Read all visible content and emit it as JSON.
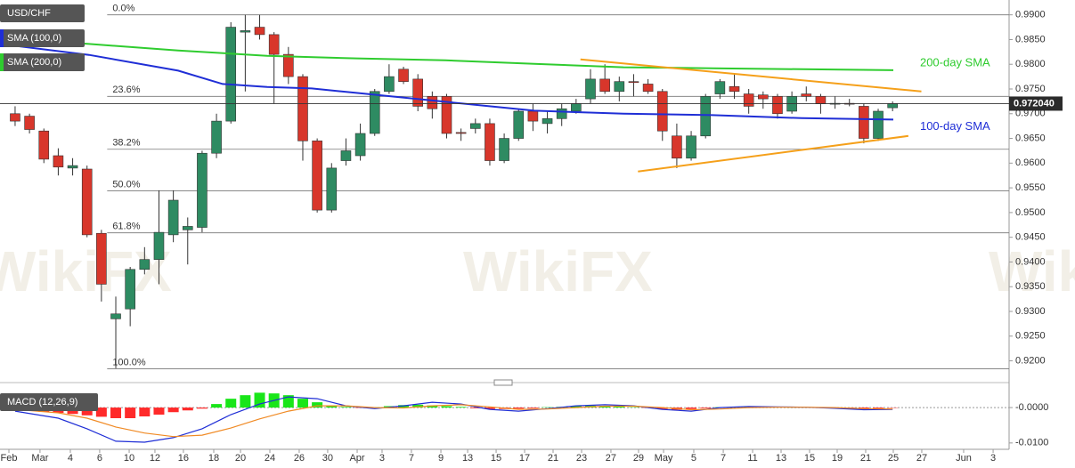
{
  "chart_data": [
    {
      "type": "candlestick",
      "legend": [
        "USD/CHF",
        "SMA (100,0)",
        "SMA (200,0)"
      ],
      "xlim": [
        -1.05,
        69.1
      ],
      "ylim": [
        0.9165,
        0.993
      ],
      "yticks": [
        {
          "value": 0.92,
          "label": "0.9200"
        },
        {
          "value": 0.925,
          "label": "0.9250"
        },
        {
          "value": 0.93,
          "label": "0.9300"
        },
        {
          "value": 0.935,
          "label": "0.9350"
        },
        {
          "value": 0.94,
          "label": "0.9400"
        },
        {
          "value": 0.945,
          "label": "0.9450"
        },
        {
          "value": 0.95,
          "label": "0.9500"
        },
        {
          "value": 0.955,
          "label": "0.9550"
        },
        {
          "value": 0.96,
          "label": "0.9600"
        },
        {
          "value": 0.965,
          "label": "0.9650"
        },
        {
          "value": 0.97,
          "label": "0.9700"
        },
        {
          "value": 0.975,
          "label": "0.9750"
        },
        {
          "value": 0.98,
          "label": "0.9800"
        },
        {
          "value": 0.985,
          "label": "0.9850"
        },
        {
          "value": 0.99,
          "label": "0.9900"
        }
      ],
      "up_color": "#2e8b62",
      "down_color": "#d8362b",
      "candles": {
        "name": "USD/CHF",
        "open": [
          0.97,
          0.9695,
          0.9665,
          0.9615,
          0.959,
          0.9588,
          0.9458,
          0.9285,
          0.9305,
          0.9385,
          0.9405,
          0.9455,
          0.9465,
          0.947,
          0.962,
          0.9685,
          0.9865,
          0.9875,
          0.986,
          0.982,
          0.9775,
          0.9645,
          0.9505,
          0.9605,
          0.9615,
          0.966,
          0.9745,
          0.979,
          0.977,
          0.9735,
          0.9735,
          0.9662,
          0.967,
          0.968,
          0.9605,
          0.965,
          0.9705,
          0.968,
          0.969,
          0.9705,
          0.973,
          0.977,
          0.9745,
          0.9765,
          0.976,
          0.9745,
          0.9655,
          0.961,
          0.9655,
          0.974,
          0.9755,
          0.974,
          0.9738,
          0.9735,
          0.9705,
          0.974,
          0.9735,
          0.972,
          0.9721,
          0.9715,
          0.965,
          0.9712
        ],
        "high": [
          0.9715,
          0.97,
          0.967,
          0.963,
          0.961,
          0.9595,
          0.9465,
          0.933,
          0.939,
          0.943,
          0.9545,
          0.9545,
          0.949,
          0.9625,
          0.97,
          0.9885,
          0.99,
          0.99,
          0.9865,
          0.9835,
          0.978,
          0.965,
          0.96,
          0.965,
          0.968,
          0.975,
          0.98,
          0.9795,
          0.978,
          0.9745,
          0.974,
          0.967,
          0.969,
          0.969,
          0.966,
          0.971,
          0.972,
          0.9705,
          0.972,
          0.973,
          0.979,
          0.98,
          0.9775,
          0.978,
          0.977,
          0.975,
          0.968,
          0.9665,
          0.974,
          0.977,
          0.978,
          0.975,
          0.9745,
          0.974,
          0.9745,
          0.9755,
          0.974,
          0.9735,
          0.973,
          0.972,
          0.971,
          0.9725
        ],
        "low": [
          0.9675,
          0.966,
          0.96,
          0.9575,
          0.9575,
          0.945,
          0.932,
          0.9185,
          0.927,
          0.9375,
          0.9355,
          0.944,
          0.9395,
          0.946,
          0.961,
          0.968,
          0.9745,
          0.985,
          0.972,
          0.976,
          0.9605,
          0.95,
          0.95,
          0.9595,
          0.9605,
          0.9655,
          0.974,
          0.976,
          0.9705,
          0.969,
          0.965,
          0.9645,
          0.966,
          0.9595,
          0.96,
          0.9645,
          0.9665,
          0.966,
          0.9675,
          0.97,
          0.972,
          0.974,
          0.9725,
          0.9735,
          0.974,
          0.9645,
          0.959,
          0.9605,
          0.965,
          0.973,
          0.973,
          0.97,
          0.971,
          0.969,
          0.97,
          0.9725,
          0.97,
          0.971,
          0.9715,
          0.964,
          0.9645,
          0.9705
        ],
        "close": [
          0.9685,
          0.9668,
          0.9608,
          0.9592,
          0.9595,
          0.9455,
          0.9355,
          0.9295,
          0.9385,
          0.9405,
          0.946,
          0.9525,
          0.9472,
          0.962,
          0.9685,
          0.9875,
          0.9868,
          0.986,
          0.982,
          0.9775,
          0.9645,
          0.9505,
          0.959,
          0.9625,
          0.966,
          0.9745,
          0.9775,
          0.9765,
          0.9715,
          0.971,
          0.966,
          0.966,
          0.968,
          0.9605,
          0.965,
          0.9705,
          0.9685,
          0.969,
          0.971,
          0.972,
          0.977,
          0.9745,
          0.9765,
          0.9763,
          0.9745,
          0.9665,
          0.961,
          0.9655,
          0.9735,
          0.9765,
          0.9745,
          0.9715,
          0.973,
          0.97,
          0.9735,
          0.9735,
          0.972,
          0.9721,
          0.972,
          0.965,
          0.9705,
          0.972
        ]
      },
      "series": [
        {
          "name": "SMA (100,0)",
          "color": "#1f2ed6",
          "x": [
            -1.05,
            5.14,
            11.33,
            14.43,
            17.52,
            20.62,
            23.72,
            29.91,
            36.1,
            42.29,
            48.48,
            54.67,
            61.05
          ],
          "values": [
            0.9841,
            0.9819,
            0.9787,
            0.976,
            0.9754,
            0.9751,
            0.9742,
            0.9724,
            0.9706,
            0.97,
            0.9697,
            0.9691,
            0.9688
          ],
          "annotation": "100-day SMA"
        },
        {
          "name": "SMA (200,0)",
          "color": "#2fcc2f",
          "x": [
            -1.05,
            5.14,
            11.33,
            17.52,
            23.72,
            29.91,
            36.1,
            42.29,
            48.48,
            54.67,
            61.05
          ],
          "values": [
            0.9853,
            0.9841,
            0.9828,
            0.9817,
            0.9812,
            0.9808,
            0.9801,
            0.9794,
            0.9792,
            0.979,
            0.9788
          ],
          "annotation": "200-day SMA"
        }
      ],
      "fib_levels": [
        {
          "label": "0.0%",
          "value": 0.99
        },
        {
          "label": "23.6%",
          "value": 0.9735
        },
        {
          "label": "38.2%",
          "value": 0.9628
        },
        {
          "label": "50.0%",
          "value": 0.9544
        },
        {
          "label": "61.8%",
          "value": 0.9459
        },
        {
          "label": "100.0%",
          "value": 0.9184
        }
      ],
      "trendlines": {
        "color": "#f5a01a",
        "lines": [
          {
            "x": [
              39.3,
              63.0
            ],
            "values": [
              0.981,
              0.9745
            ]
          },
          {
            "x": [
              43.3,
              62.1
            ],
            "values": [
              0.9583,
              0.9655
            ]
          }
        ]
      },
      "last_price": {
        "value": 0.97204,
        "label": "0.972040"
      },
      "watermark": "WikiFX"
    },
    {
      "type": "macd",
      "legend": "MACD (12,26,9)",
      "xlim": [
        -1.05,
        69.1
      ],
      "ylim": [
        -0.0118,
        0.0053
      ],
      "yticks": [
        {
          "value": 0,
          "label": "-0.0000"
        },
        {
          "value": -0.01,
          "label": "-0.0100"
        }
      ],
      "histogram": {
        "up_color": "#19e619",
        "down_color": "#ff2a2a",
        "values": [
          -0.0005,
          -0.0008,
          -0.0012,
          -0.0015,
          -0.0018,
          -0.0022,
          -0.0026,
          -0.003,
          -0.003,
          -0.0025,
          -0.002,
          -0.0013,
          -0.0008,
          -0.0003,
          0.001,
          0.0025,
          0.0035,
          0.0042,
          0.004,
          0.0035,
          0.0025,
          0.0015,
          0.0005,
          0.0002,
          -0.0001,
          0.0001,
          0.0004,
          0.0007,
          0.0008,
          0.0006,
          0.0004,
          0.0002,
          -0.0002,
          -0.0004,
          -0.0004,
          -0.0003,
          -0.0002,
          0.0001,
          0.0002,
          0.0004,
          0.0005,
          0.0005,
          0.0003,
          0.0001,
          -0.0001,
          -0.0004,
          -0.0006,
          -0.0004,
          -0.0002,
          0.0001,
          0.0002,
          0.0001,
          0.0,
          0.0,
          0.0001,
          0.0001,
          0.0,
          -0.0001,
          -0.0003,
          -0.0004,
          -0.0002,
          -0.0001
        ]
      },
      "series": [
        {
          "color": "#1f2ed6",
          "x": [
            0,
            3,
            5,
            7,
            9,
            11,
            13,
            15,
            17,
            19,
            21,
            23,
            25,
            27,
            29,
            31,
            33,
            35,
            37,
            39,
            41,
            43,
            45,
            47,
            49,
            51,
            53,
            55,
            57,
            59,
            61
          ],
          "values": [
            -0.001,
            -0.003,
            -0.006,
            -0.0095,
            -0.0098,
            -0.0085,
            -0.006,
            -0.002,
            0.001,
            0.003,
            0.0025,
            0.0005,
            -0.0003,
            0.0005,
            0.0015,
            0.001,
            -0.0005,
            -0.001,
            -0.0003,
            0.0005,
            0.0008,
            0.0005,
            -0.0005,
            -0.001,
            0.0,
            0.0003,
            0.0002,
            0.0001,
            -0.0002,
            -0.0006,
            -0.0005
          ]
        },
        {
          "color": "#f08a24",
          "x": [
            0,
            3,
            5,
            7,
            9,
            11,
            13,
            15,
            17,
            19,
            21,
            23,
            25,
            27,
            29,
            31,
            33,
            35,
            37,
            39,
            41,
            43,
            45,
            47,
            49,
            51,
            53,
            55,
            57,
            59,
            61
          ],
          "values": [
            -0.0005,
            -0.0015,
            -0.003,
            -0.0055,
            -0.0072,
            -0.0082,
            -0.0078,
            -0.0058,
            -0.0032,
            -0.001,
            0.0005,
            0.0005,
            0.0,
            -0.0001,
            0.0005,
            0.0008,
            0.0002,
            -0.0005,
            -0.0004,
            0.0,
            0.0004,
            0.0004,
            0.0,
            -0.0006,
            -0.0004,
            0.0,
            0.0001,
            0.0001,
            0.0,
            -0.0003,
            -0.0004
          ]
        }
      ],
      "xticks": [
        {
          "value": -0.43,
          "label": "Feb"
        },
        {
          "value": 1.73,
          "label": "Mar"
        },
        {
          "value": 3.84,
          "label": "4"
        },
        {
          "value": 5.88,
          "label": "6"
        },
        {
          "value": 7.93,
          "label": "10"
        },
        {
          "value": 9.72,
          "label": "12"
        },
        {
          "value": 11.7,
          "label": "16"
        },
        {
          "value": 13.81,
          "label": "18"
        },
        {
          "value": 15.67,
          "label": "20"
        },
        {
          "value": 17.71,
          "label": "24"
        },
        {
          "value": 19.75,
          "label": "26"
        },
        {
          "value": 21.73,
          "label": "30"
        },
        {
          "value": 23.78,
          "label": "Apr"
        },
        {
          "value": 25.51,
          "label": "3"
        },
        {
          "value": 27.55,
          "label": "7"
        },
        {
          "value": 29.6,
          "label": "9"
        },
        {
          "value": 31.46,
          "label": "13"
        },
        {
          "value": 33.44,
          "label": "15"
        },
        {
          "value": 35.42,
          "label": "17"
        },
        {
          "value": 37.4,
          "label": "21"
        },
        {
          "value": 39.38,
          "label": "23"
        },
        {
          "value": 41.42,
          "label": "27"
        },
        {
          "value": 43.34,
          "label": "29"
        },
        {
          "value": 45.08,
          "label": "May"
        },
        {
          "value": 47.18,
          "label": "5"
        },
        {
          "value": 49.23,
          "label": "7"
        },
        {
          "value": 51.27,
          "label": "11"
        },
        {
          "value": 53.25,
          "label": "13"
        },
        {
          "value": 55.23,
          "label": "15"
        },
        {
          "value": 57.15,
          "label": "19"
        },
        {
          "value": 59.13,
          "label": "21"
        },
        {
          "value": 61.05,
          "label": "25"
        },
        {
          "value": 63.03,
          "label": "27"
        },
        {
          "value": 65.94,
          "label": "Jun"
        },
        {
          "value": 67.99,
          "label": "3"
        }
      ]
    }
  ]
}
